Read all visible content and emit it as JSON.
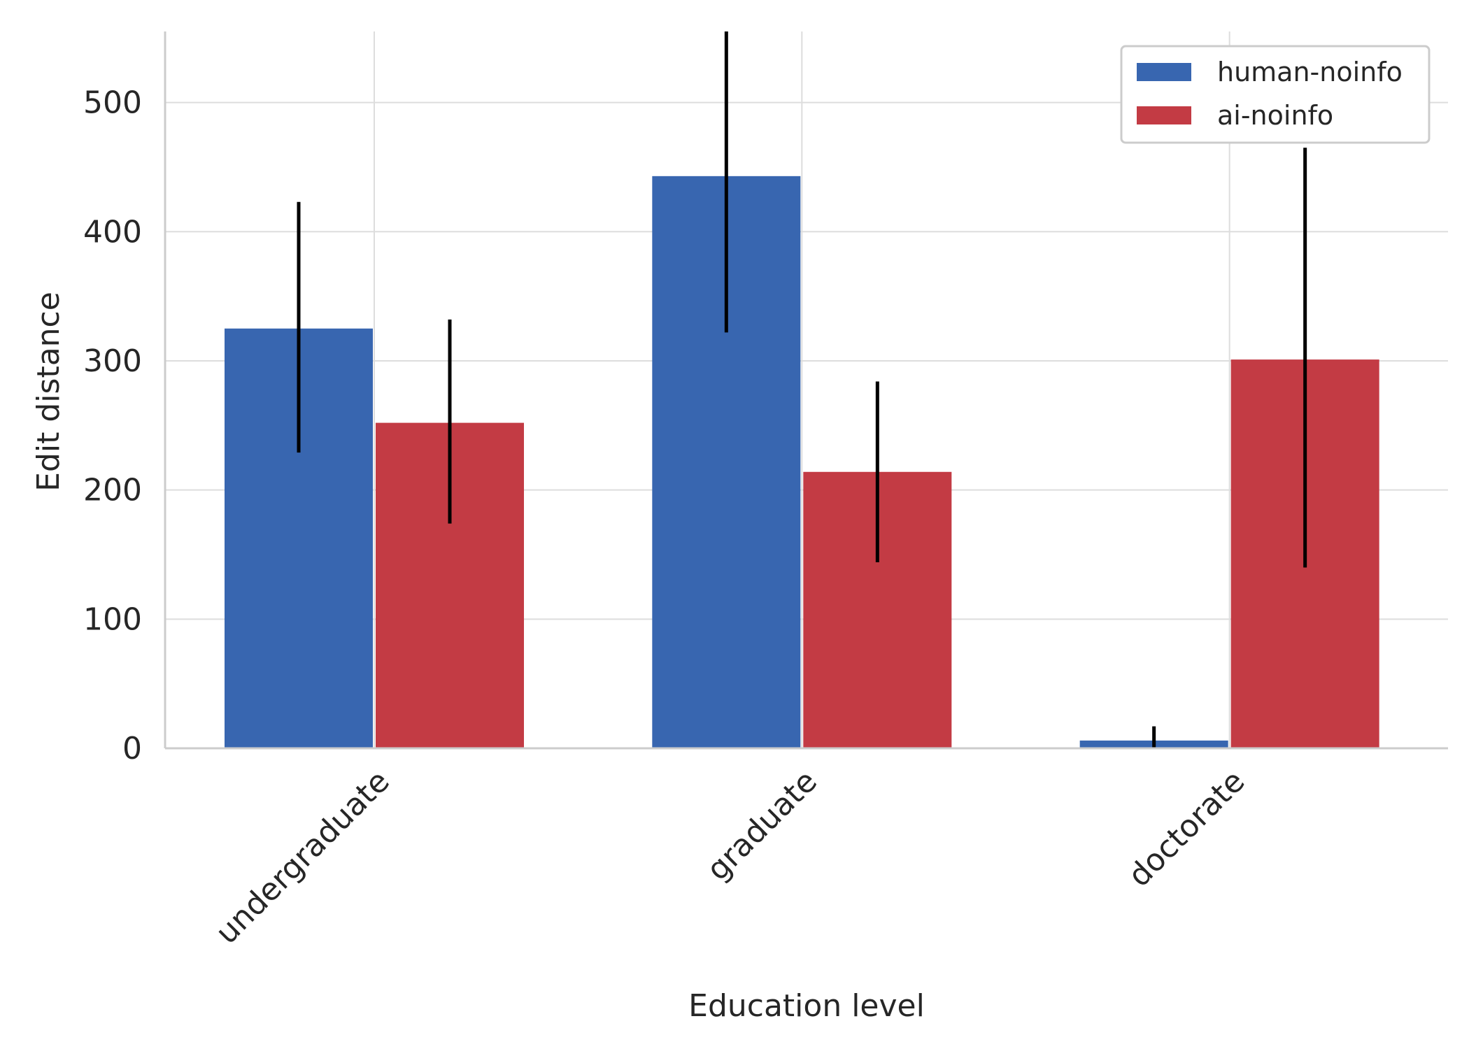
{
  "chart_data": {
    "type": "bar",
    "title": "",
    "xlabel": "Education level",
    "ylabel": "Edit distance",
    "categories": [
      "undergraduate",
      "graduate",
      "doctorate"
    ],
    "ylim": [
      0,
      555
    ],
    "yticks": [
      0,
      100,
      200,
      300,
      400,
      500
    ],
    "grid": true,
    "legend_position": "top-right",
    "series": [
      {
        "name": "human-noinfo",
        "color": "#3866b0",
        "values": [
          325,
          443,
          6
        ],
        "error_low": [
          229,
          322,
          0
        ],
        "error_high": [
          423,
          560,
          17
        ]
      },
      {
        "name": "ai-noinfo",
        "color": "#c33b44",
        "values": [
          252,
          214,
          301
        ],
        "error_low": [
          174,
          144,
          140
        ],
        "error_high": [
          332,
          284,
          465
        ]
      }
    ]
  }
}
